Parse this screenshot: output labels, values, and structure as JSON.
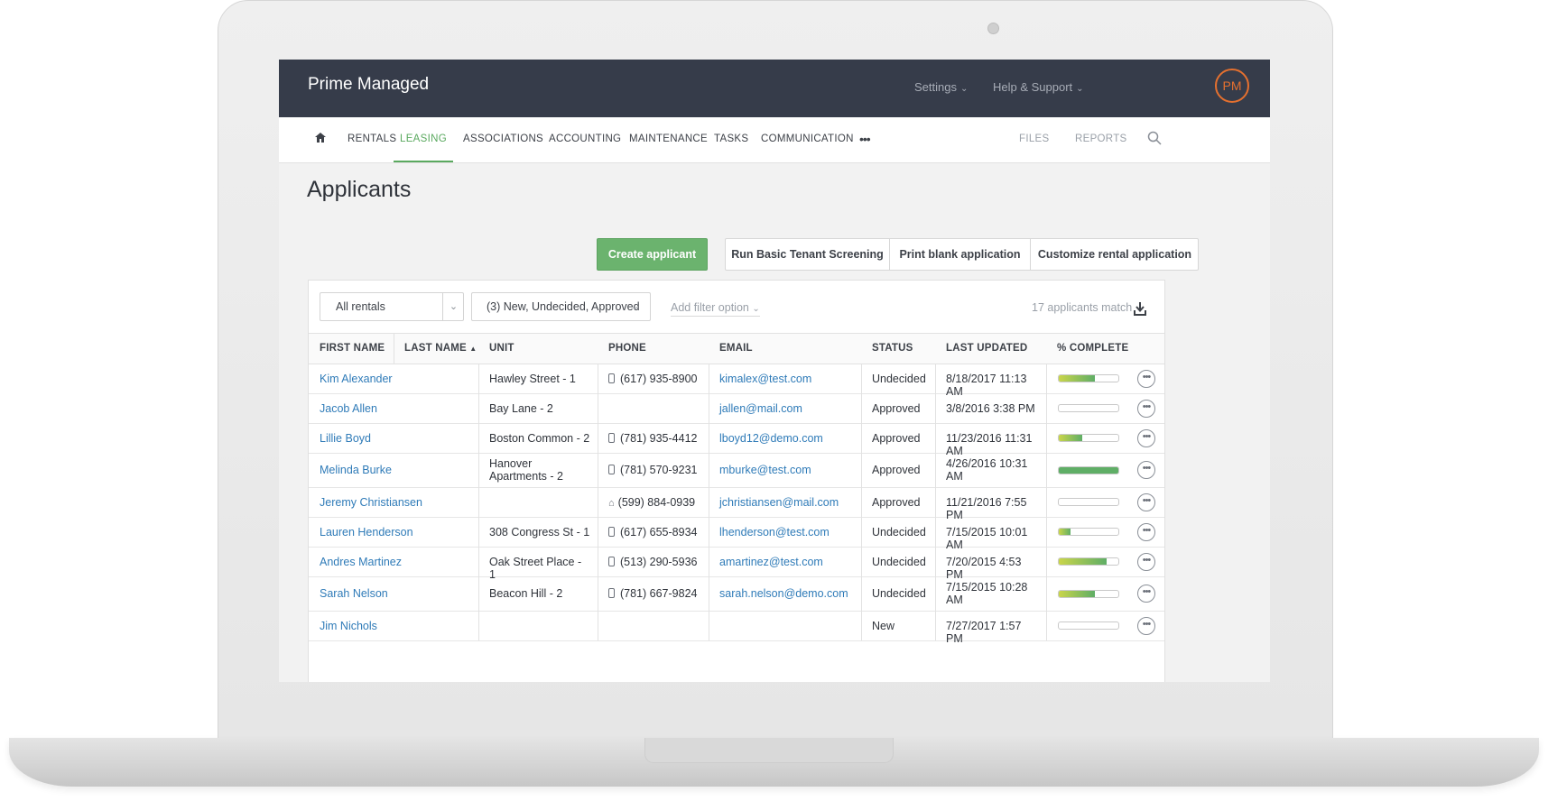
{
  "app": {
    "name": "Prime Managed",
    "avatar_initials": "PM"
  },
  "top_menu": {
    "settings": "Settings",
    "help": "Help & Support"
  },
  "nav": {
    "items": [
      "RENTALS",
      "LEASING",
      "ASSOCIATIONS",
      "ACCOUNTING",
      "MAINTENANCE",
      "TASKS",
      "COMMUNICATION"
    ],
    "active": "LEASING",
    "more": "•••",
    "right_items": [
      "FILES",
      "REPORTS"
    ]
  },
  "page": {
    "title": "Applicants"
  },
  "actions": {
    "create": "Create applicant",
    "screening": "Run Basic Tenant Screening",
    "print": "Print blank application",
    "customize": "Customize rental application"
  },
  "filters": {
    "rentals": "All rentals",
    "status": "(3) New, Undecided, Approved",
    "add": "Add filter option",
    "match_count": "17 applicants match"
  },
  "table": {
    "columns": [
      "FIRST NAME",
      "LAST NAME",
      "UNIT",
      "PHONE",
      "EMAIL",
      "STATUS",
      "LAST UPDATED",
      "% COMPLETE"
    ],
    "sort_indicator": "▲",
    "rows": [
      {
        "name": "Kim Alexander",
        "unit": "Hawley Street - 1",
        "phone_type": "mobile",
        "phone": "(617) 935-8900",
        "email": "kimalex@test.com",
        "status": "Undecided",
        "updated": "8/18/2017 11:13 AM",
        "complete": 0.6
      },
      {
        "name": "Jacob Allen",
        "unit": "Bay Lane - 2",
        "phone_type": "",
        "phone": "",
        "email": "jallen@mail.com",
        "status": "Approved",
        "updated": "3/8/2016 3:38 PM",
        "complete": 0
      },
      {
        "name": "Lillie Boyd",
        "unit": "Boston Common - 2",
        "phone_type": "mobile",
        "phone": "(781) 935-4412",
        "email": "lboyd12@demo.com",
        "status": "Approved",
        "updated": "11/23/2016 11:31 AM",
        "complete": 0.4
      },
      {
        "name": "Melinda Burke",
        "unit": "Hanover Apartments - 2",
        "phone_type": "mobile",
        "phone": "(781) 570-9231",
        "email": "mburke@test.com",
        "status": "Approved",
        "updated": "4/26/2016 10:31 AM",
        "complete": 1.0
      },
      {
        "name": "Jeremy Christiansen",
        "unit": "",
        "phone_type": "home",
        "phone": "(599) 884-0939",
        "email": "jchristiansen@mail.com",
        "status": "Approved",
        "updated": "11/21/2016 7:55 PM",
        "complete": 0
      },
      {
        "name": "Lauren Henderson",
        "unit": "308 Congress St - 1",
        "phone_type": "mobile",
        "phone": "(617) 655-8934",
        "email": "lhenderson@test.com",
        "status": "Undecided",
        "updated": "7/15/2015 10:01 AM",
        "complete": 0.2
      },
      {
        "name": "Andres Martinez",
        "unit": "Oak Street Place - 1",
        "phone_type": "mobile",
        "phone": "(513) 290-5936",
        "email": "amartinez@test.com",
        "status": "Undecided",
        "updated": "7/20/2015 4:53 PM",
        "complete": 0.8
      },
      {
        "name": "Sarah Nelson",
        "unit": "Beacon Hill - 2",
        "phone_type": "mobile",
        "phone": "(781) 667-9824",
        "email": "sarah.nelson@demo.com",
        "status": "Undecided",
        "updated": "7/15/2015 10:28 AM",
        "complete": 0.6
      },
      {
        "name": "Jim Nichols",
        "unit": "",
        "phone_type": "",
        "phone": "",
        "email": "",
        "status": "New",
        "updated": "7/27/2017 1:57 PM",
        "complete": 0
      }
    ]
  },
  "colors": {
    "accent": "#5aa95f",
    "topbar": "#363c4a",
    "link": "#2f7bb8",
    "avatar": "#e4702f"
  },
  "icons": {
    "home": "home-icon",
    "search": "search-icon",
    "download": "download-icon",
    "more": "more-options-icon",
    "mobile": "mobile-phone-icon",
    "landline": "home-phone-icon"
  }
}
